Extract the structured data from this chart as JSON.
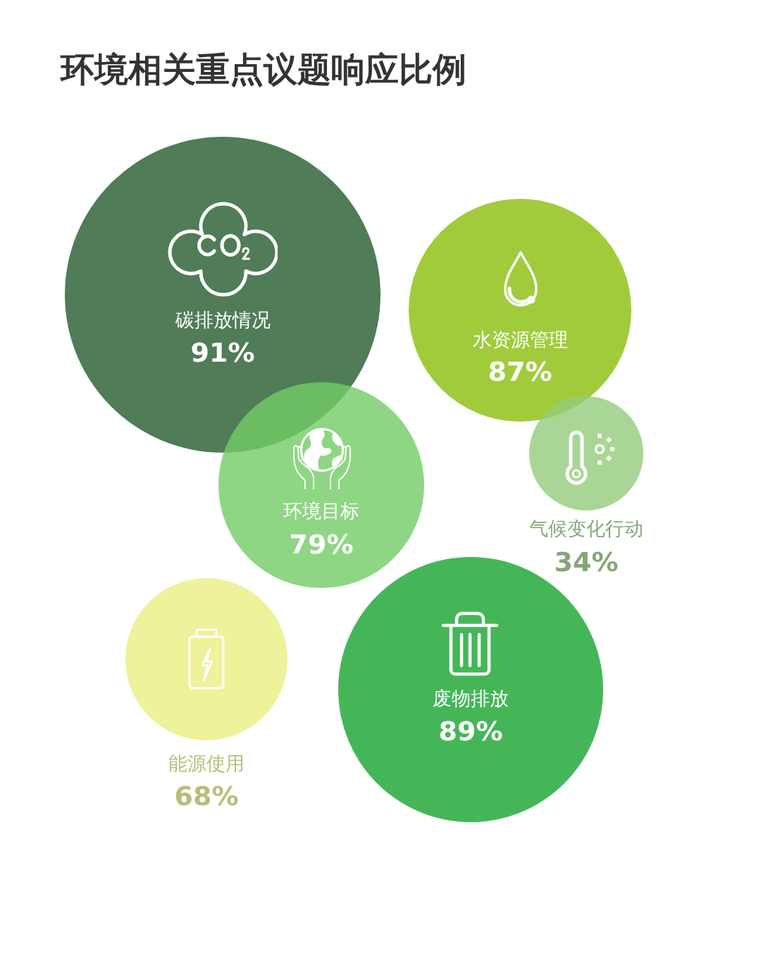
{
  "chart_data": {
    "type": "other",
    "title": "环境相关重点议题响应比例",
    "categories": [
      "碳排放情况",
      "水资源管理",
      "环境目标",
      "气候变化行动",
      "能源使用",
      "废物排放"
    ],
    "values": [
      91,
      87,
      79,
      34,
      68,
      89
    ],
    "value_labels": [
      "91%",
      "87%",
      "79%",
      "34%",
      "68%",
      "89%"
    ],
    "colors": [
      "#507c58",
      "#a2cb3c",
      "#8fd684",
      "#a9d696",
      "#edf29b",
      "#45b658"
    ]
  }
}
